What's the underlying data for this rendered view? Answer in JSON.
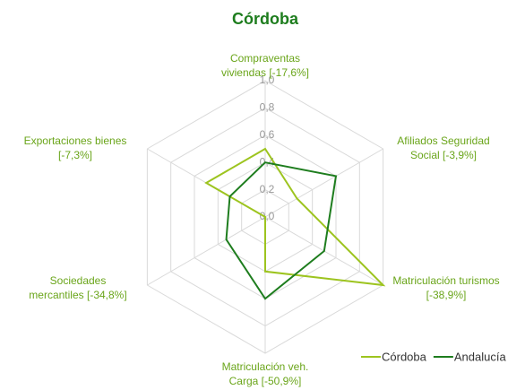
{
  "chart_data": {
    "type": "radar",
    "title": "Córdoba",
    "categories": [
      "Compraventas\nviviendas [-17,6%]",
      "Afiliados Seguridad\nSocial [-3,9%]",
      "Matriculación turismos\n[-38,9%]",
      "Matriculación veh.\nCarga [-50,9%]",
      "Sociedades\nmercantiles [-34,8%]",
      "Exportaciones bienes\n[-7,3%]"
    ],
    "series": [
      {
        "name": "Córdoba",
        "color": "#9dc41f",
        "values": [
          0.5,
          0.27,
          1.0,
          0.4,
          0.0,
          0.5
        ]
      },
      {
        "name": "Andalucía",
        "color": "#1e7d1e",
        "values": [
          0.4,
          0.6,
          0.5,
          0.6,
          0.33,
          0.3
        ]
      }
    ],
    "ylim": [
      0,
      1
    ],
    "yticks": [
      {
        "value": 0,
        "label": "0,0"
      },
      {
        "value": 0.2,
        "label": "0,2"
      },
      {
        "value": 0.4,
        "label": "0,4"
      },
      {
        "value": 0.6,
        "label": "0,6"
      },
      {
        "value": 0.8,
        "label": "0,8"
      },
      {
        "value": 1,
        "label": "1,0"
      }
    ],
    "grid": true,
    "legend": "bottom-right"
  }
}
